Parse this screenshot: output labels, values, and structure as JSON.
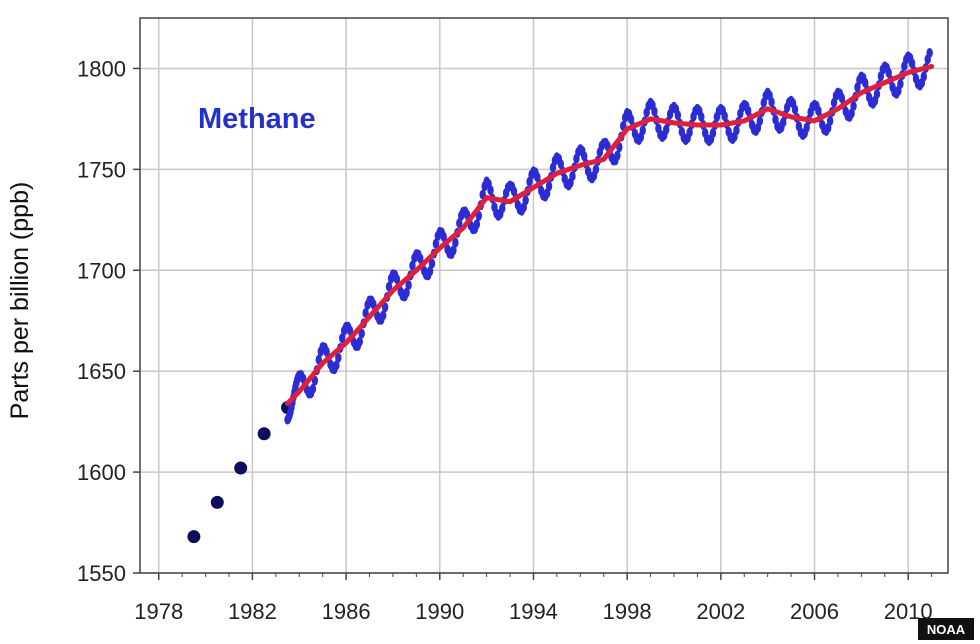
{
  "chart_data": {
    "type": "scatter",
    "title": "",
    "annotation": "Methane",
    "credit": "NOAA",
    "xlabel": "",
    "ylabel": "Parts per billion (ppb)",
    "xlim": [
      1977.2,
      2011.7
    ],
    "ylim": [
      1550,
      1825
    ],
    "x_ticks": [
      1978,
      1982,
      1986,
      1990,
      1994,
      1998,
      2002,
      2006,
      2010
    ],
    "x_tick_labels": [
      "1978",
      "1982",
      "1986",
      "1990",
      "1994",
      "1998",
      "2002",
      "2006",
      "2010"
    ],
    "y_ticks": [
      1550,
      1600,
      1650,
      1700,
      1750,
      1800
    ],
    "y_tick_labels": [
      "1550",
      "1600",
      "1650",
      "1700",
      "1750",
      "1800"
    ],
    "grid": true,
    "colors": {
      "annual": "#0d0d5c",
      "monthly": "#2c2cd4",
      "trend": "#e01f3d",
      "annotation": "#2530c8",
      "grid": "#c8c8c8",
      "credit_bg": "#111111"
    },
    "series": [
      {
        "style": "points",
        "x": [
          1979.5,
          1980.5,
          1981.5,
          1982.5,
          1983.5
        ],
        "y": [
          1568,
          1585,
          1602,
          1619,
          1632
        ]
      },
      {
        "style": "seasonal",
        "seasonal_amplitude": 8,
        "x": [
          1983.5,
          1984,
          1985,
          1986,
          1987,
          1988,
          1989,
          1990,
          1991,
          1992,
          1993,
          1994,
          1995,
          1996,
          1997,
          1998,
          1999,
          2000,
          2001,
          2002,
          2003,
          2004,
          2005,
          2006,
          2007,
          2008,
          2009,
          2010,
          2011
        ],
        "y": [
          1634,
          1640,
          1654,
          1664,
          1677,
          1690,
          1700,
          1711,
          1721,
          1736,
          1734,
          1741,
          1748,
          1752,
          1755,
          1770,
          1775,
          1773,
          1772,
          1772,
          1774,
          1780,
          1776,
          1774,
          1780,
          1788,
          1793,
          1798,
          1801
        ]
      },
      {
        "style": "line",
        "x": [
          1983.5,
          1984,
          1985,
          1986,
          1987,
          1988,
          1989,
          1990,
          1991,
          1992,
          1993,
          1994,
          1995,
          1996,
          1997,
          1998,
          1999,
          2000,
          2001,
          2002,
          2003,
          2004,
          2005,
          2006,
          2007,
          2008,
          2009,
          2010,
          2011
        ],
        "y": [
          1634,
          1640,
          1654,
          1664,
          1677,
          1690,
          1700,
          1711,
          1721,
          1736,
          1734,
          1741,
          1748,
          1752,
          1755,
          1770,
          1775,
          1773,
          1772,
          1772,
          1774,
          1780,
          1776,
          1774,
          1780,
          1788,
          1793,
          1798,
          1801
        ]
      }
    ]
  }
}
